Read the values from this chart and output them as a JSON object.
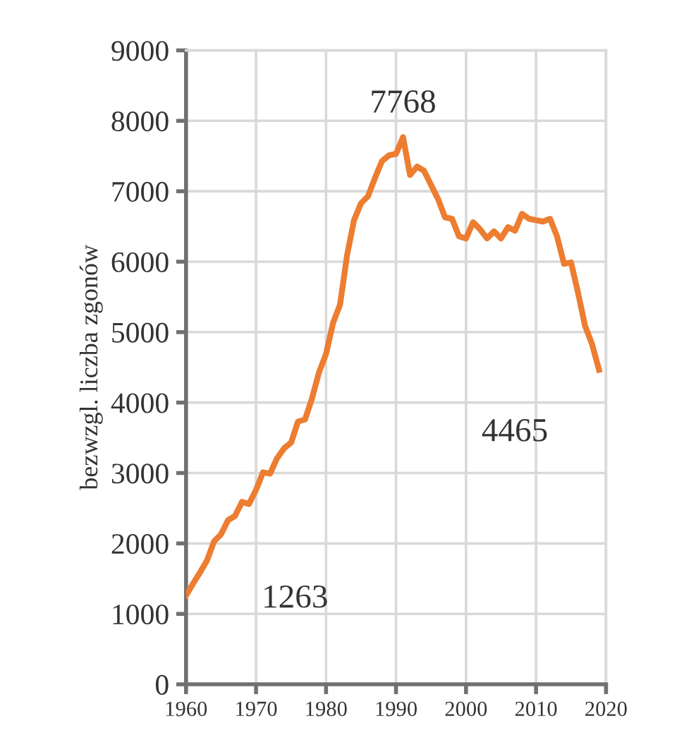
{
  "chart_data": {
    "type": "line",
    "ylabel": "bezwzgl. liczba zgonów",
    "x": [
      1960,
      1961,
      1962,
      1963,
      1964,
      1965,
      1966,
      1967,
      1968,
      1969,
      1970,
      1971,
      1972,
      1973,
      1974,
      1975,
      1976,
      1977,
      1978,
      1979,
      1980,
      1981,
      1982,
      1983,
      1984,
      1985,
      1986,
      1987,
      1988,
      1989,
      1990,
      1991,
      1992,
      1993,
      1994,
      1995,
      1996,
      1997,
      1998,
      1999,
      2000,
      2001,
      2002,
      2003,
      2004,
      2005,
      2006,
      2007,
      2008,
      2009,
      2010,
      2011,
      2012,
      2013,
      2014,
      2015,
      2016,
      2017,
      2018,
      2019
    ],
    "series": [
      {
        "color": "#ed7d31",
        "values": [
          1263,
          1430,
          1590,
          1760,
          2030,
          2130,
          2330,
          2390,
          2590,
          2560,
          2760,
          3010,
          2990,
          3210,
          3350,
          3430,
          3730,
          3760,
          4060,
          4430,
          4690,
          5130,
          5390,
          6090,
          6590,
          6830,
          6930,
          7190,
          7430,
          7510,
          7530,
          7768,
          7230,
          7350,
          7290,
          7090,
          6890,
          6630,
          6610,
          6360,
          6330,
          6560,
          6460,
          6330,
          6430,
          6330,
          6490,
          6440,
          6680,
          6610,
          6590,
          6570,
          6610,
          6360,
          5970,
          5990,
          5560,
          5090,
          4830,
          4465
        ]
      }
    ],
    "annotations": [
      "1263",
      {
        "text": "7768",
        "x": 1991,
        "y": 7768
      },
      {
        "text": "4465",
        "x": 2019,
        "y": 4465
      }
    ],
    "xlim": [
      1960,
      2020
    ],
    "xticks": [
      1960,
      1970,
      1980,
      1990,
      2000,
      2010,
      2020
    ],
    "ylim": [
      0,
      9000
    ],
    "yticks": [
      0,
      1000,
      2000,
      3000,
      4000,
      5000,
      6000,
      7000,
      8000,
      9000
    ],
    "grid": true,
    "marker": "none",
    "line_style": "solid"
  }
}
